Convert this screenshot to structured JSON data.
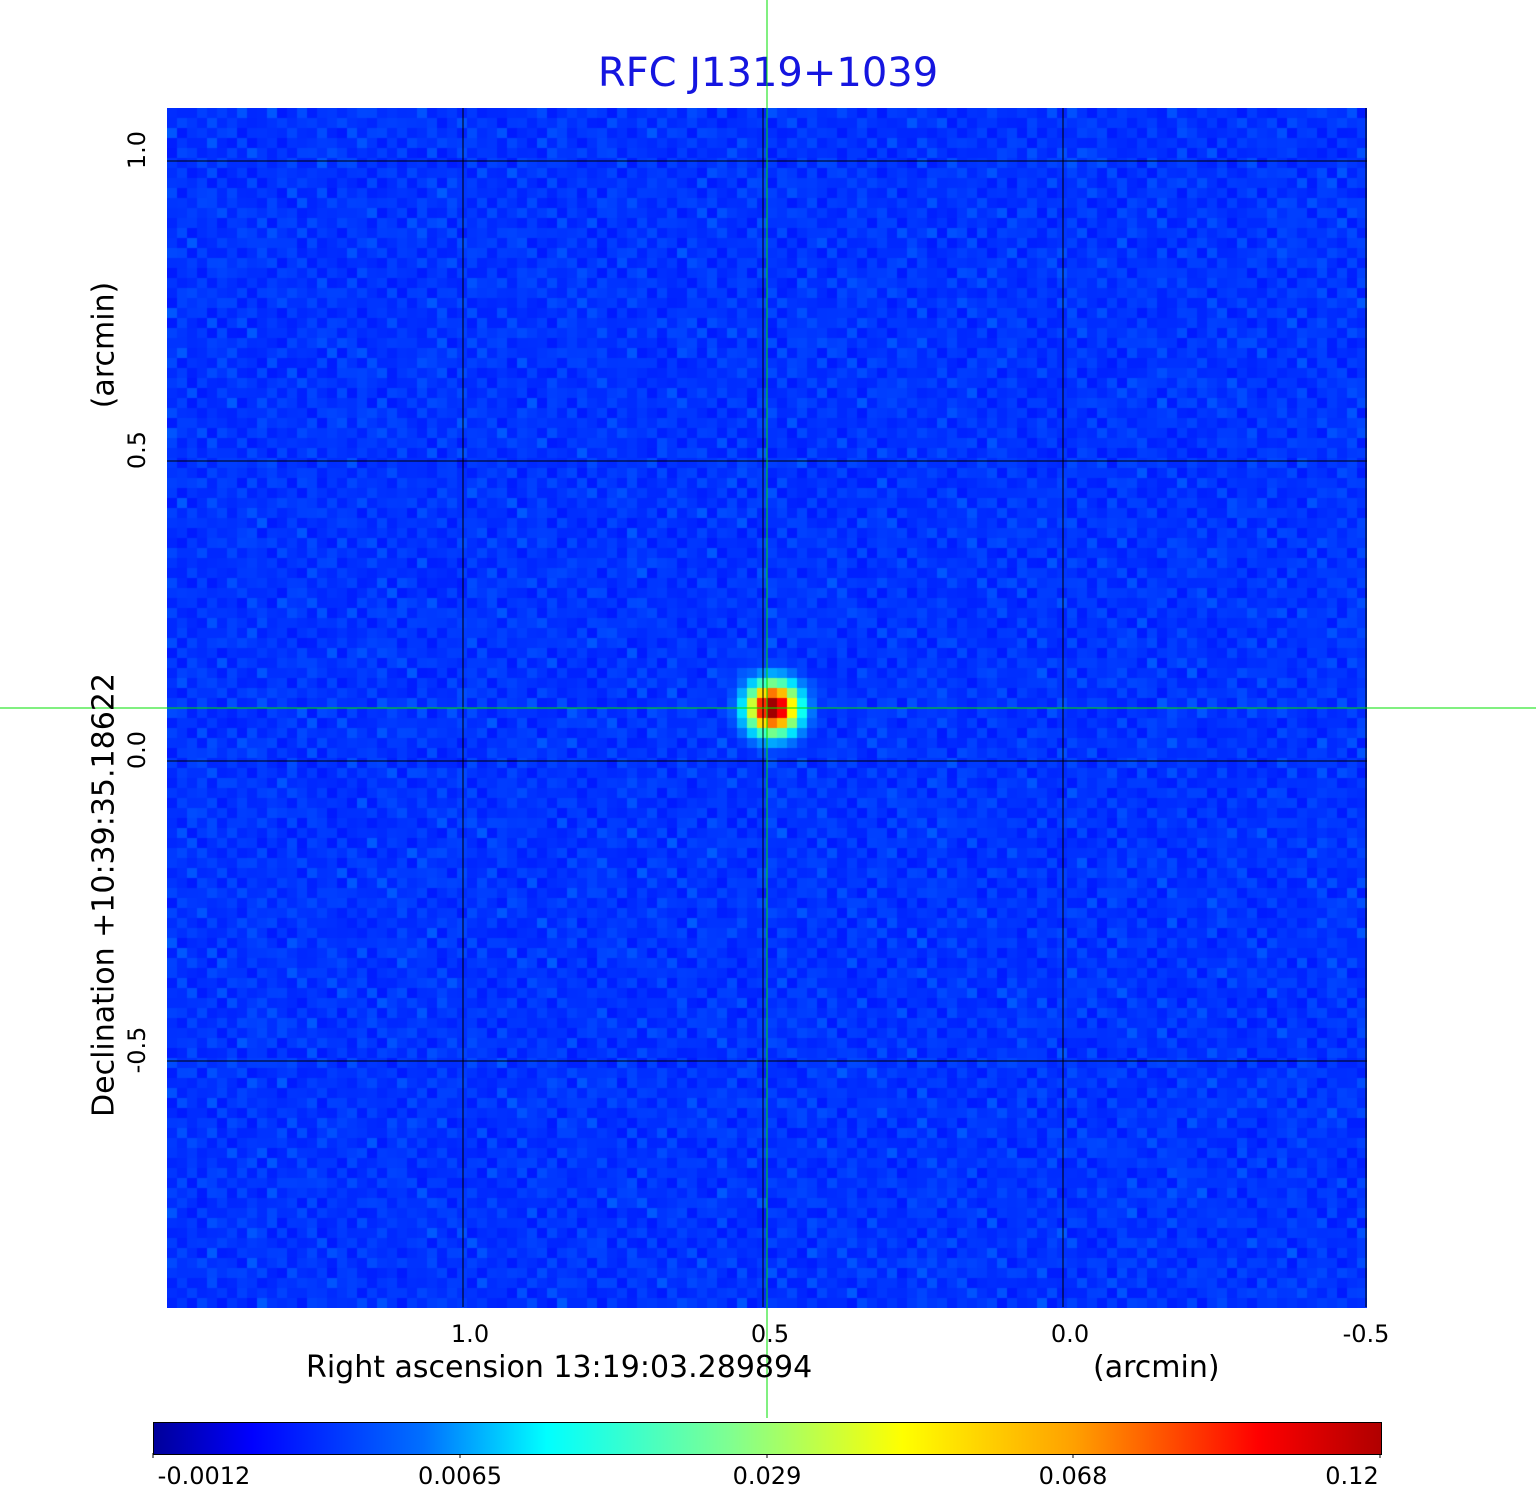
{
  "chart_data": {
    "type": "heatmap",
    "title": "RFC J1319+1039",
    "xlabel": "Right ascension  13:19:03.289894",
    "xunit": "(arcmin)",
    "ylabel": "Declination  +10:39:35.18622",
    "yunit": "(arcmin)",
    "x_ticks": [
      "1.0",
      "0.5",
      "0.0",
      "-0.5"
    ],
    "y_ticks": [
      "1.0",
      "0.5",
      "0.0",
      "-0.5"
    ],
    "xlim": [
      1.5,
      -0.5
    ],
    "ylim": [
      -0.91,
      1.09
    ],
    "grid": true,
    "colormap": "jet",
    "colorbar": {
      "placement": "bottom",
      "ticks": [
        "-0.0012",
        "0.0065",
        "0.029",
        "0.068",
        "0.12"
      ],
      "range": [
        -0.0012,
        0.12
      ]
    },
    "source": {
      "x": 0.49,
      "y": 0.09,
      "peak": 0.12
    },
    "crosshair_color": "#00e000",
    "grid_color": "#000000",
    "title_color": "#1515e0"
  }
}
